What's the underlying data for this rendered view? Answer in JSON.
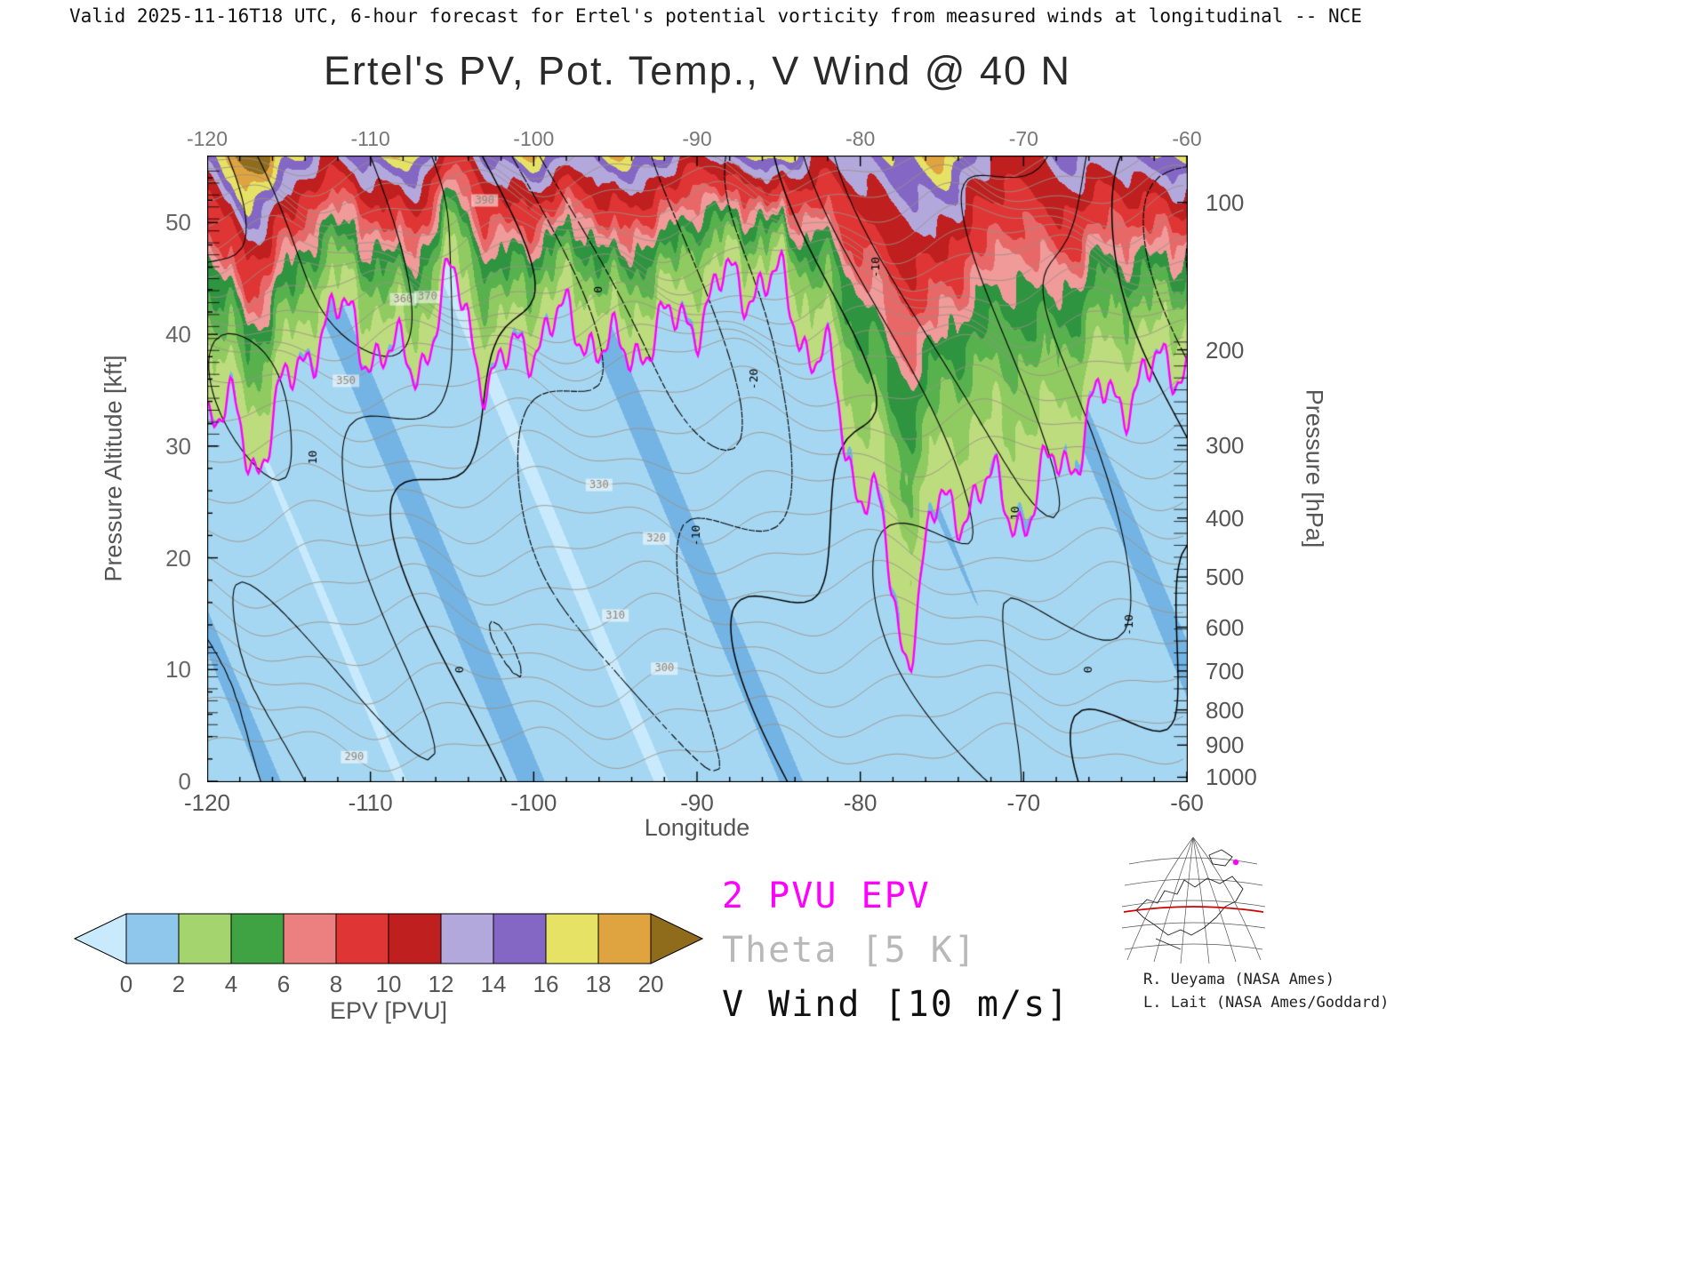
{
  "header": "Valid 2025-11-16T18 UTC, 6-hour forecast for Ertel's potential vorticity from measured winds at longitudinal -- NCE",
  "title": "Ertel's PV, Pot. Temp., V Wind @ 40 N",
  "axes": {
    "x_label": "Longitude",
    "x_range": [
      -120,
      -60
    ],
    "x_ticks": [
      -120,
      -110,
      -100,
      -90,
      -80,
      -70,
      -60
    ],
    "x_minor_step": 2,
    "y_left_label": "Pressure Altitude [kft]",
    "y_left_range": [
      0,
      56
    ],
    "y_left_ticks": [
      0,
      10,
      20,
      30,
      40,
      50
    ],
    "y_left_minor_step": 2,
    "y_right_label": "Pressure [hPa]",
    "y_right_ticks": [
      100,
      200,
      300,
      400,
      500,
      600,
      700,
      800,
      900,
      1000
    ]
  },
  "legend": [
    {
      "label": "2 PVU EPV",
      "color": "#ff00ff"
    },
    {
      "label": "Theta [5 K]",
      "color": "#b8b8b8"
    },
    {
      "label": "V Wind [10 m/s]",
      "color": "#111111"
    }
  ],
  "colorbar": {
    "label": "EPV [PVU]",
    "tick_labels": [
      0,
      2,
      4,
      6,
      8,
      10,
      12,
      14,
      16,
      18,
      20
    ],
    "segment_colors": [
      "#8ec6ec",
      "#a4d46e",
      "#3fa344",
      "#ec8080",
      "#e03535",
      "#bf1f1f",
      "#b3a8dc",
      "#8467c4",
      "#e6e266",
      "#dfa43f"
    ],
    "under_arrow_color": "#c8eafc",
    "over_arrow_color": "#8f6b1c"
  },
  "credits": [
    "R. Ueyama (NASA Ames)",
    "L. Lait (NASA Ames/Goddard)"
  ],
  "chart_data": {
    "type": "heatmap",
    "title": "Ertel's PV, Pot. Temp., V Wind @ 40 N",
    "field": "Ertel's potential vorticity (EPV) [PVU], longitude-height cross-section at 40 N",
    "xlabel": "Longitude",
    "ylabel": "Pressure Altitude [kft]",
    "x_range": [
      -120,
      -60
    ],
    "y_range": [
      0,
      56
    ],
    "colormap": {
      "thresholds": [
        0,
        1,
        2,
        3,
        4,
        5,
        6,
        7,
        8,
        10,
        12,
        14,
        16,
        18,
        20
      ],
      "colors": [
        "#c8eafc",
        "#a6d7f2",
        "#74b4e4",
        "#bcdc7e",
        "#8fcb60",
        "#57b24e",
        "#2f9440",
        "#f09a9a",
        "#e86868",
        "#e03535",
        "#bf1f1f",
        "#b3a8dc",
        "#8467c4",
        "#e6e266",
        "#dfa43f",
        "#8f6b1c"
      ]
    },
    "longitudes": [
      -120,
      -117.5,
      -115,
      -112.5,
      -110,
      -107.5,
      -105,
      -102.5,
      -100,
      -97.5,
      -95,
      -92.5,
      -90,
      -87.5,
      -85,
      -82.5,
      -80,
      -77.5,
      -75,
      -72.5,
      -70,
      -67.5,
      -65,
      -62.5,
      -60
    ],
    "tropopause_2pvu_kft": [
      34,
      33,
      35,
      42,
      39,
      37,
      44,
      36,
      40,
      41,
      38,
      40,
      42,
      45,
      44,
      38,
      27,
      22,
      24,
      26,
      24,
      29,
      34,
      36,
      38
    ],
    "pv_at_top_pvu": [
      14,
      24,
      17,
      12,
      16,
      18,
      9,
      15,
      18,
      13,
      18,
      16,
      11,
      15,
      18,
      12,
      14,
      16,
      19,
      13,
      11,
      15,
      13,
      15,
      18
    ],
    "tropopause_folds": [
      {
        "lon": -77.3,
        "extra_depth_kft": 10,
        "half_width_deg": 1.1
      },
      {
        "lon": -117.2,
        "extra_depth_kft": 5,
        "half_width_deg": 0.95
      }
    ],
    "contour_overlays": [
      {
        "name": "2 PVU EPV",
        "color": "#ff00ff"
      },
      {
        "name": "Theta",
        "interval_K": 5,
        "min_K": 290,
        "max_K": 410,
        "color": "#9a9184",
        "labels": [
          {
            "value": 390,
            "lon": -103
          },
          {
            "value": 370,
            "lon": -106.5
          },
          {
            "value": 360,
            "lon": -108
          },
          {
            "value": 350,
            "lon": -111.5
          },
          {
            "value": 330,
            "lon": -96
          },
          {
            "value": 320,
            "lon": -92.5
          },
          {
            "value": 310,
            "lon": -95
          },
          {
            "value": 300,
            "lon": -92
          },
          {
            "value": 290,
            "lon": -111
          }
        ]
      },
      {
        "name": "V Wind",
        "interval_ms": 10,
        "levels": [
          -30,
          -20,
          -10,
          0,
          10,
          20,
          30
        ],
        "negative_style": "dashed",
        "color": "#000000",
        "labels": [
          {
            "value": 10,
            "lon": -113.5,
            "kft": 29
          },
          {
            "value": 0,
            "lon": -104.5,
            "kft": 10
          },
          {
            "value": 0,
            "lon": -96,
            "kft": 44
          },
          {
            "value": -10,
            "lon": -90,
            "kft": 22
          },
          {
            "value": -20,
            "lon": -86.5,
            "kft": 36
          },
          {
            "value": -10,
            "lon": -79,
            "kft": 46
          },
          {
            "value": 10,
            "lon": -70.5,
            "kft": 24
          },
          {
            "value": 0,
            "lon": -66,
            "kft": 10
          },
          {
            "value": -10,
            "lon": -63.5,
            "kft": 14
          }
        ]
      }
    ]
  }
}
